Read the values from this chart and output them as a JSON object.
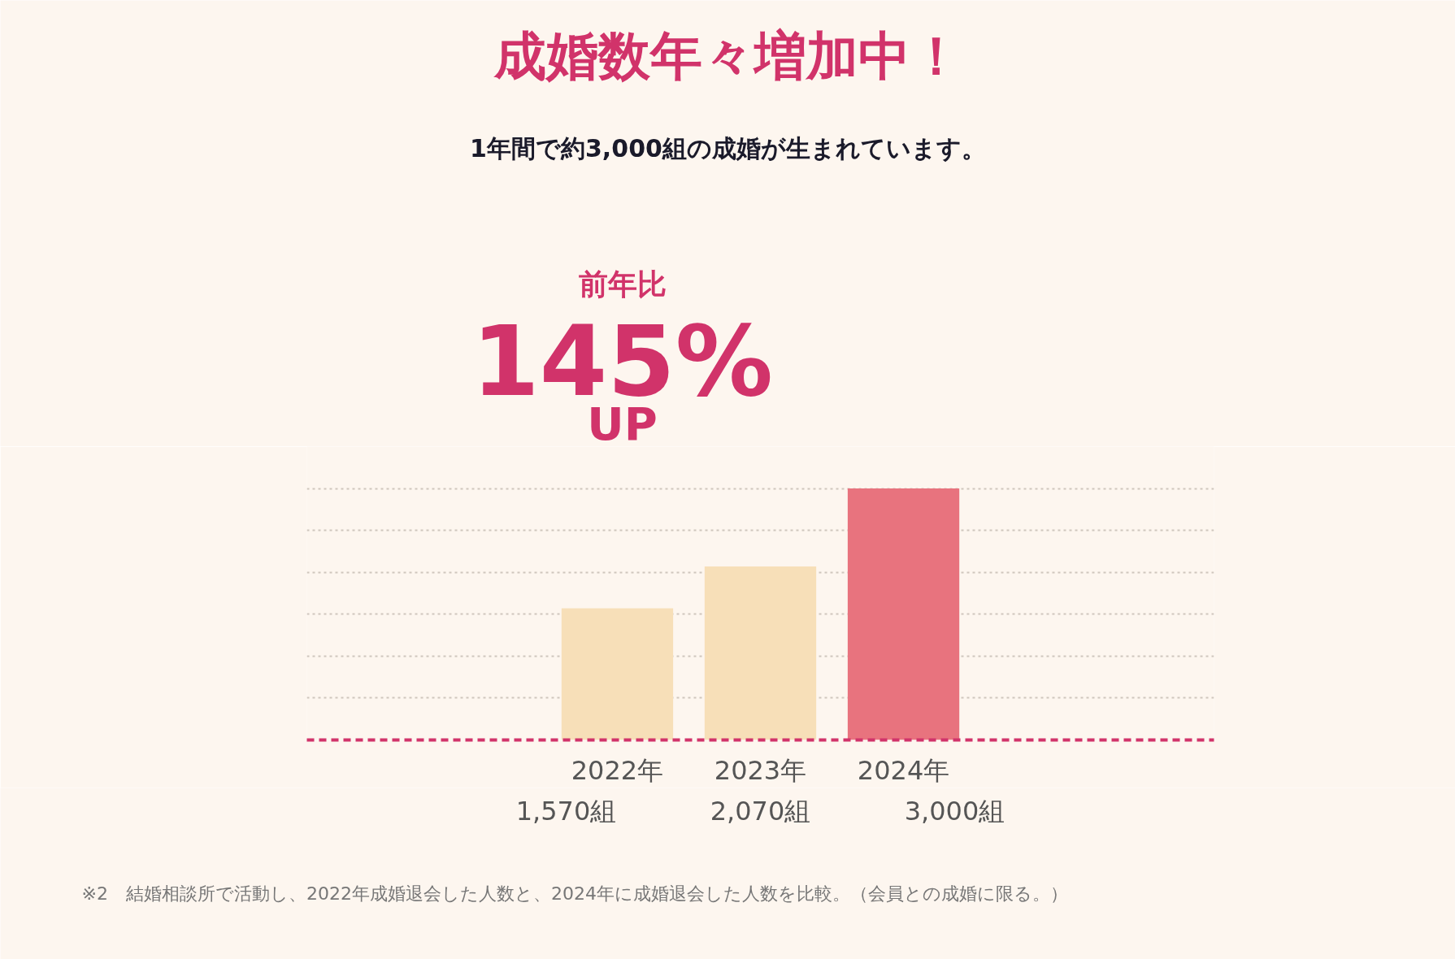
{
  "chart_data": {
    "type": "bar",
    "title": "成婚数年々増加中！",
    "subtitle": "1年間で約3,000組の成婚が生まれています。",
    "categories": [
      "2022年",
      "2023年",
      "2024年"
    ],
    "values": [
      1570,
      2070,
      3000
    ],
    "colors": [
      "#f7dfb8",
      "#f7dfb8",
      "#e8737e"
    ],
    "value_labels": [
      "1,570組",
      "2,070組",
      "3,000組"
    ],
    "grid": "y",
    "tick_labels": "x",
    "annotations": [
      "前年比",
      "145%",
      "UP",
      "※2　結婚相談所で活動し、2022年成婚退会した人数と、2024年に成婚退会した人数を比較。（会員との成婚に限る。）"
    ]
  }
}
